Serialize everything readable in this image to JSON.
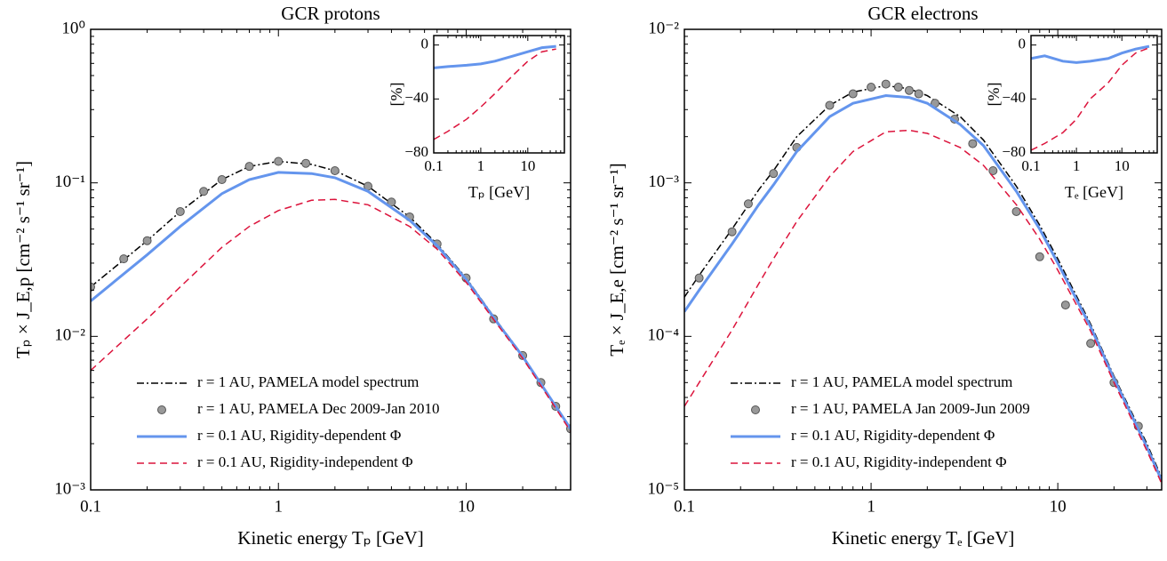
{
  "chart_data": [
    {
      "type": "line",
      "title": "GCR protons",
      "xlabel": "Kinetic energy Tₚ [GeV]",
      "ylabel": "Tₚ × J_E,p [cm⁻² s⁻¹ sr⁻¹]",
      "log_x": true,
      "log_y": true,
      "xlim": [
        0.1,
        36
      ],
      "ylim": [
        0.001,
        1
      ],
      "xticks": [
        0.1,
        1,
        10
      ],
      "yticks": [
        {
          "value": 0.001,
          "label": "10⁻³"
        },
        {
          "value": 0.01,
          "label": "10⁻²"
        },
        {
          "value": 0.1,
          "label": "10⁻¹"
        },
        {
          "value": 1,
          "label": "10⁰"
        }
      ],
      "legend": "lower left",
      "series": [
        {
          "name": "r = 1 AU, PAMELA model spectrum",
          "color": "#000000",
          "style": "dashdot",
          "x": [
            0.1,
            0.2,
            0.3,
            0.5,
            0.7,
            1,
            1.5,
            2,
            3,
            5,
            7,
            10,
            15,
            20,
            30,
            36
          ],
          "values": [
            0.021,
            0.042,
            0.065,
            0.105,
            0.128,
            0.138,
            0.132,
            0.12,
            0.095,
            0.06,
            0.04,
            0.024,
            0.012,
            0.0075,
            0.0035,
            0.0025
          ]
        },
        {
          "name": "r = 1 AU, PAMELA Dec 2009-Jan 2010",
          "color": "#999999",
          "style": "points",
          "x": [
            0.1,
            0.15,
            0.2,
            0.3,
            0.4,
            0.5,
            0.7,
            1,
            1.4,
            2,
            3,
            4,
            5,
            7,
            10,
            14,
            20,
            25,
            30,
            36
          ],
          "values": [
            0.021,
            0.032,
            0.042,
            0.065,
            0.088,
            0.105,
            0.128,
            0.138,
            0.134,
            0.12,
            0.095,
            0.075,
            0.06,
            0.04,
            0.024,
            0.013,
            0.0075,
            0.005,
            0.0035,
            0.0025
          ]
        },
        {
          "name": "r = 0.1 AU, Rigidity-dependent Φ",
          "color": "#6495ed",
          "style": "solid",
          "x": [
            0.1,
            0.2,
            0.3,
            0.5,
            0.7,
            1,
            1.5,
            2,
            3,
            5,
            7,
            10,
            15,
            20,
            30,
            36
          ],
          "values": [
            0.017,
            0.034,
            0.052,
            0.085,
            0.105,
            0.117,
            0.115,
            0.108,
            0.088,
            0.057,
            0.039,
            0.0235,
            0.0118,
            0.0074,
            0.0035,
            0.0025
          ]
        },
        {
          "name": "r = 0.1 AU, Rigidity-independent Φ",
          "color": "#dc143c",
          "style": "dashed",
          "x": [
            0.1,
            0.2,
            0.3,
            0.5,
            0.7,
            1,
            1.5,
            2,
            3,
            5,
            7,
            10,
            15,
            20,
            30,
            36
          ],
          "values": [
            0.006,
            0.013,
            0.021,
            0.038,
            0.052,
            0.066,
            0.077,
            0.078,
            0.072,
            0.052,
            0.037,
            0.0225,
            0.0115,
            0.0072,
            0.0034,
            0.0024
          ]
        }
      ]
    },
    {
      "type": "line",
      "xlabel": "Tₚ [GeV]",
      "ylabel": "[%]",
      "log_x": true,
      "log_y": false,
      "xlim": [
        0.1,
        60
      ],
      "ylim": [
        -80,
        7
      ],
      "xticks": [
        0.1,
        1,
        10
      ],
      "yticks": [
        {
          "value": -80,
          "label": "−80"
        },
        {
          "value": -40,
          "label": "−40"
        },
        0
      ],
      "series": [
        {
          "color": "#6495ed",
          "style": "solid",
          "x": [
            0.1,
            0.2,
            0.5,
            1,
            2,
            5,
            10,
            20,
            40
          ],
          "values": [
            -17,
            -16,
            -15,
            -14,
            -12,
            -8,
            -5,
            -2,
            -1
          ]
        },
        {
          "color": "#dc143c",
          "style": "dashed",
          "x": [
            0.1,
            0.2,
            0.5,
            1,
            2,
            5,
            10,
            20,
            40
          ],
          "values": [
            -70,
            -64,
            -55,
            -46,
            -36,
            -22,
            -12,
            -5,
            -3
          ]
        }
      ]
    },
    {
      "type": "line",
      "title": "GCR electrons",
      "xlabel": "Kinetic energy Tₑ [GeV]",
      "ylabel": "Tₑ × J_E,e [cm⁻² s⁻¹ sr⁻¹]",
      "log_x": true,
      "log_y": true,
      "xlim": [
        0.1,
        36
      ],
      "ylim": [
        1e-05,
        0.01
      ],
      "xticks": [
        0.1,
        1,
        10
      ],
      "yticks": [
        {
          "value": 1e-05,
          "label": "10⁻⁵"
        },
        {
          "value": 0.0001,
          "label": "10⁻⁴"
        },
        {
          "value": 0.001,
          "label": "10⁻³"
        },
        {
          "value": 0.01,
          "label": "10⁻²"
        }
      ],
      "legend": "lower left",
      "series": [
        {
          "name": "r = 1 AU, PAMELA model spectrum",
          "color": "#000000",
          "style": "dashdot",
          "x": [
            0.1,
            0.12,
            0.18,
            0.25,
            0.3,
            0.4,
            0.6,
            0.8,
            1.2,
            1.6,
            2,
            3,
            4,
            6,
            8,
            10,
            15,
            20,
            30,
            36
          ],
          "values": [
            0.00018,
            0.00025,
            0.0005,
            0.0009,
            0.0012,
            0.002,
            0.0032,
            0.0039,
            0.0043,
            0.0041,
            0.0037,
            0.0027,
            0.0019,
            0.00095,
            0.00053,
            0.00032,
            0.00012,
            5.5e-05,
            2e-05,
            1.2e-05
          ]
        },
        {
          "name": "r = 1 AU, PAMELA Jan 2009-Jun 2009",
          "color": "#999999",
          "style": "points",
          "x": [
            0.12,
            0.18,
            0.22,
            0.3,
            0.4,
            0.6,
            0.8,
            1,
            1.2,
            1.4,
            1.6,
            1.8,
            2.2,
            2.8,
            3.5,
            4.5,
            6,
            8,
            11,
            15,
            20,
            27
          ],
          "values": [
            0.00024,
            0.00048,
            0.00073,
            0.00115,
            0.0017,
            0.0032,
            0.0038,
            0.0042,
            0.0044,
            0.0042,
            0.004,
            0.0038,
            0.0033,
            0.0026,
            0.0018,
            0.0012,
            0.00065,
            0.00033,
            0.00016,
            9e-05,
            5e-05,
            2.6e-05
          ]
        },
        {
          "name": "r = 0.1 AU, Rigidity-dependent Φ",
          "color": "#6495ed",
          "style": "solid",
          "x": [
            0.1,
            0.12,
            0.18,
            0.25,
            0.3,
            0.4,
            0.6,
            0.8,
            1.2,
            1.6,
            2,
            3,
            4,
            6,
            8,
            10,
            15,
            20,
            30,
            36
          ],
          "values": [
            0.000145,
            0.0002,
            0.0004,
            0.00072,
            0.00097,
            0.0016,
            0.0027,
            0.0033,
            0.0037,
            0.0036,
            0.0033,
            0.0024,
            0.00175,
            0.00088,
            0.0005,
            0.0003,
            0.000115,
            5.3e-05,
            1.9e-05,
            1.15e-05
          ]
        },
        {
          "name": "r = 0.1 AU, Rigidity-independent Φ",
          "color": "#dc143c",
          "style": "dashed",
          "x": [
            0.1,
            0.12,
            0.18,
            0.25,
            0.3,
            0.4,
            0.6,
            0.8,
            1.2,
            1.6,
            2,
            3,
            4,
            6,
            8,
            10,
            15,
            20,
            30,
            36
          ],
          "values": [
            3.5e-05,
            5e-05,
            0.00011,
            0.00022,
            0.00032,
            0.00056,
            0.0011,
            0.0016,
            0.00215,
            0.0022,
            0.0021,
            0.0017,
            0.0013,
            0.00072,
            0.00043,
            0.00027,
            0.000108,
            5e-05,
            1.8e-05,
            1.1e-05
          ]
        }
      ]
    },
    {
      "type": "line",
      "xlabel": "Tₑ [GeV]",
      "ylabel": "[%]",
      "log_x": true,
      "log_y": false,
      "xlim": [
        0.1,
        60
      ],
      "ylim": [
        -80,
        7
      ],
      "xticks": [
        0.1,
        1,
        10
      ],
      "yticks": [
        {
          "value": -80,
          "label": "−80"
        },
        {
          "value": -40,
          "label": "−40"
        },
        0
      ],
      "series": [
        {
          "color": "#6495ed",
          "style": "solid",
          "x": [
            0.1,
            0.2,
            0.5,
            1,
            2,
            5,
            10,
            20,
            40
          ],
          "values": [
            -10,
            -8,
            -12,
            -13,
            -12,
            -10,
            -6,
            -3,
            -1
          ]
        },
        {
          "color": "#dc143c",
          "style": "dashed",
          "x": [
            0.1,
            0.2,
            0.5,
            1,
            2,
            5,
            10,
            20,
            40
          ],
          "values": [
            -78,
            -73,
            -65,
            -55,
            -40,
            -28,
            -15,
            -6,
            -2
          ]
        }
      ]
    }
  ]
}
